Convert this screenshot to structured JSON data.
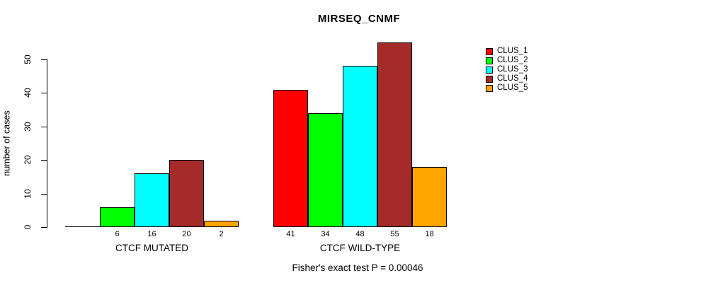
{
  "chart_data": {
    "type": "bar",
    "title": "MIRSEQ_CNMF",
    "ylabel": "number of cases",
    "xlabel": "",
    "ylim": [
      0,
      50
    ],
    "yticks": [
      0,
      10,
      20,
      30,
      40,
      50
    ],
    "grid": "off",
    "legend_position": "right-outside",
    "categories": [
      "CTCF MUTATED",
      "CTCF WILD-TYPE"
    ],
    "series": [
      {
        "name": "CLUS_1",
        "color": "#FF0000",
        "values": [
          0,
          41
        ]
      },
      {
        "name": "CLUS_2",
        "color": "#00FF00",
        "values": [
          6,
          34
        ]
      },
      {
        "name": "CLUS_3",
        "color": "#00FFFF",
        "values": [
          16,
          48
        ]
      },
      {
        "name": "CLUS_4",
        "color": "#A52A2A",
        "values": [
          20,
          55
        ]
      },
      {
        "name": "CLUS_5",
        "color": "#FFA500",
        "values": [
          2,
          18
        ]
      }
    ],
    "groups": [
      {
        "label": "CTCF MUTATED",
        "values": [
          0,
          6,
          16,
          20,
          2
        ],
        "value_labels": [
          "",
          "6",
          "16",
          "20",
          "2"
        ]
      },
      {
        "label": "CTCF WILD-TYPE",
        "values": [
          41,
          34,
          48,
          55,
          18
        ],
        "value_labels": [
          "41",
          "34",
          "48",
          "55",
          "18"
        ]
      }
    ],
    "bar_colors": [
      "#FF0000",
      "#00FF00",
      "#00FFFF",
      "#A52A2A",
      "#FFA500"
    ],
    "legend": [
      {
        "label": "CLUS_1",
        "color": "#FF0000"
      },
      {
        "label": "CLUS_2",
        "color": "#00FF00"
      },
      {
        "label": "CLUS_3",
        "color": "#00FFFF"
      },
      {
        "label": "CLUS_4",
        "color": "#A52A2A"
      },
      {
        "label": "CLUS_5",
        "color": "#FFA500"
      }
    ],
    "footnote": "Fisher's exact test P = 0.00046"
  }
}
